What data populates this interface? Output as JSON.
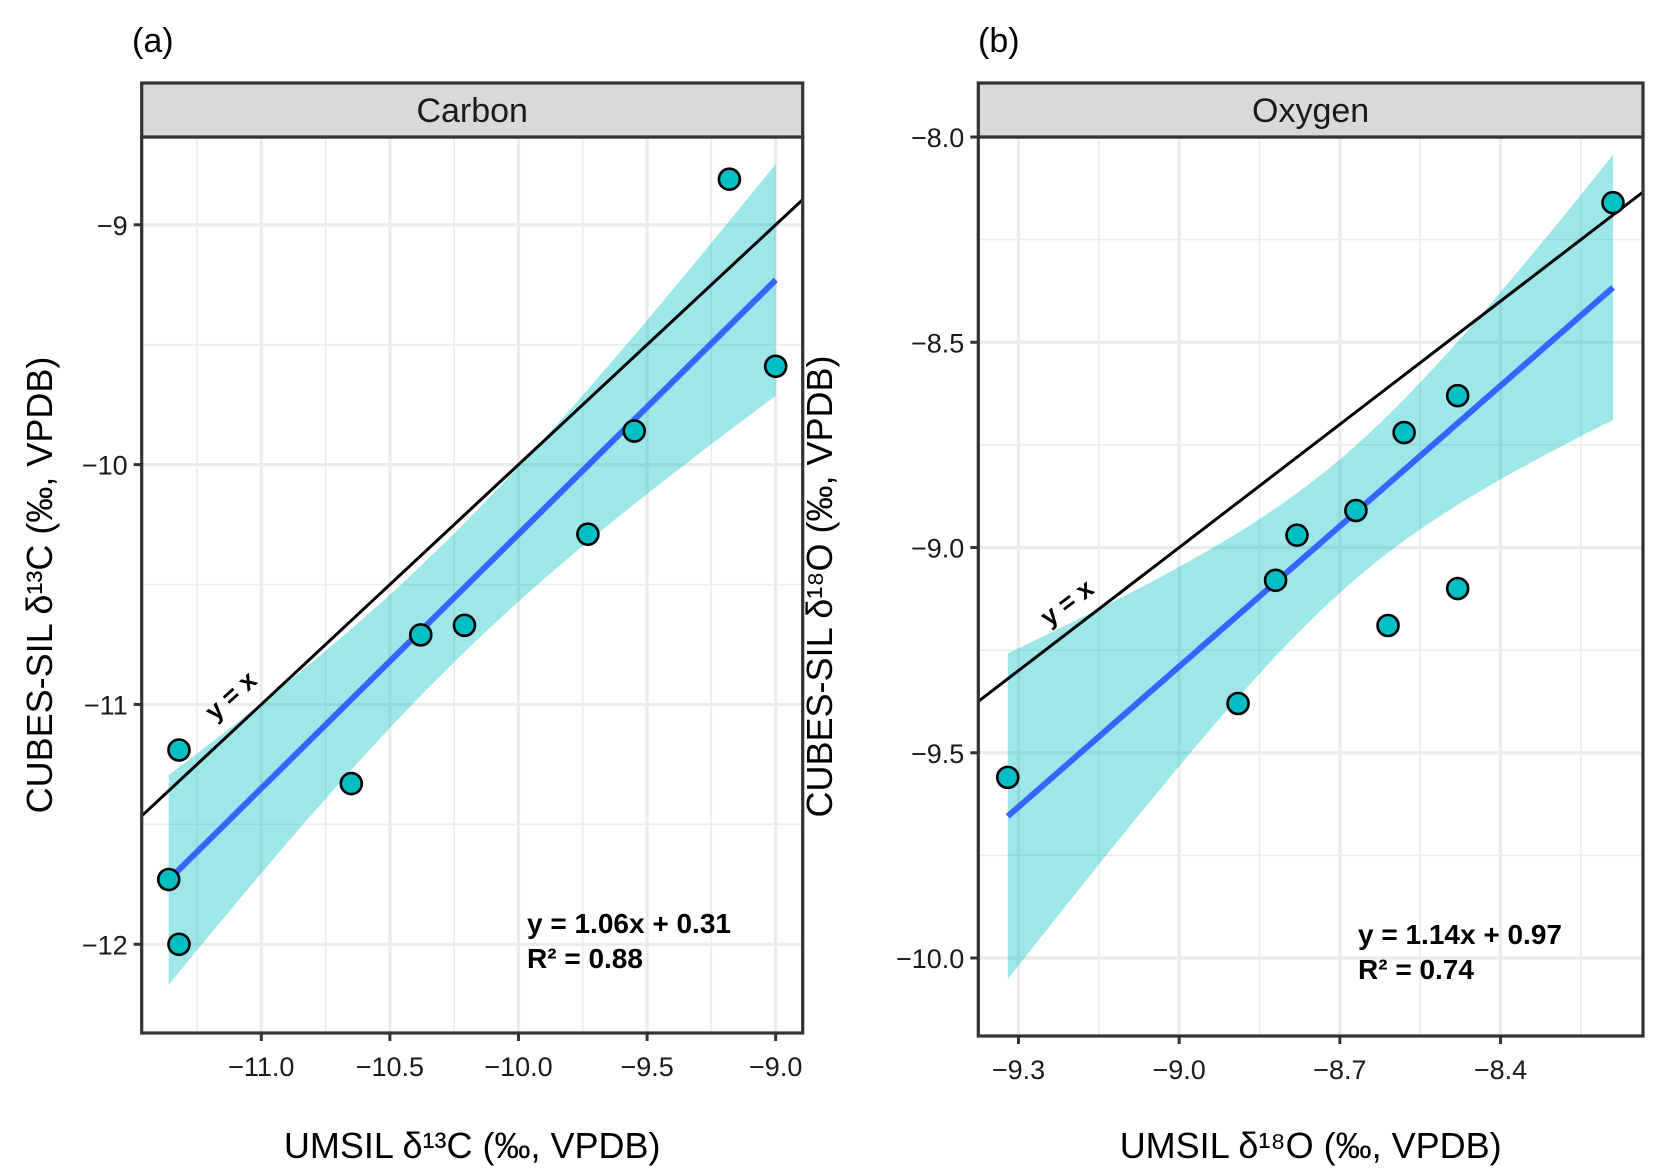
{
  "chart_data": [
    {
      "type": "scatter",
      "panel_tag": "(a)",
      "title": "Carbon",
      "xlabel": "UMSIL δ¹³C (‰, VPDB)",
      "ylabel": "CUBES-SIL δ¹³C (‰, VPDB)",
      "xlim": [
        -11.465,
        -8.895
      ],
      "ylim": [
        -12.37,
        -8.634
      ],
      "xticks": [
        -11.0,
        -10.5,
        -10.0,
        -9.5,
        -9.0
      ],
      "xtick_labels": [
        "−11.0",
        "−10.5",
        "−10.0",
        "−9.5",
        "−9.0"
      ],
      "yticks": [
        -12,
        -11,
        -10,
        -9
      ],
      "ytick_labels": [
        "−12",
        "−11",
        "−10",
        "−9"
      ],
      "grid": true,
      "points": [
        {
          "x": -11.36,
          "y": -11.73
        },
        {
          "x": -11.32,
          "y": -12.0
        },
        {
          "x": -11.32,
          "y": -11.19
        },
        {
          "x": -10.65,
          "y": -11.33
        },
        {
          "x": -10.38,
          "y": -10.71
        },
        {
          "x": -10.21,
          "y": -10.67
        },
        {
          "x": -9.73,
          "y": -10.29
        },
        {
          "x": -9.55,
          "y": -9.86
        },
        {
          "x": -9.18,
          "y": -8.81
        },
        {
          "x": -9.0,
          "y": -9.59
        }
      ],
      "fit": {
        "slope": 1.06,
        "intercept": 0.31,
        "r2": 0.88,
        "confidence_band": true
      },
      "reference_line": {
        "label": "y = x",
        "slope": 1,
        "intercept": 0
      },
      "annotation": {
        "line1": "y = 1.06x + 0.31",
        "line2": "R² = 0.88"
      }
    },
    {
      "type": "scatter",
      "panel_tag": "(b)",
      "title": "Oxygen",
      "xlabel": "UMSIL δ¹⁸O (‰, VPDB)",
      "ylabel": "CUBES-SIL δ¹⁸O (‰, VPDB)",
      "xlim": [
        -9.375,
        -8.134
      ],
      "ylim": [
        -10.19,
        -8.0
      ],
      "xticks": [
        -9.3,
        -9.0,
        -8.7,
        -8.4
      ],
      "xtick_labels": [
        "−9.3",
        "−9.0",
        "−8.7",
        "−8.4"
      ],
      "yticks": [
        -10.0,
        -9.5,
        -9.0,
        -8.5,
        -8.0
      ],
      "ytick_labels": [
        "−10.0",
        "−9.5",
        "−9.0",
        "−8.5",
        "−8.0"
      ],
      "grid": true,
      "points": [
        {
          "x": -9.32,
          "y": -9.56
        },
        {
          "x": -8.89,
          "y": -9.38
        },
        {
          "x": -8.82,
          "y": -9.08
        },
        {
          "x": -8.78,
          "y": -8.97
        },
        {
          "x": -8.67,
          "y": -8.91
        },
        {
          "x": -8.61,
          "y": -9.19
        },
        {
          "x": -8.58,
          "y": -8.72
        },
        {
          "x": -8.48,
          "y": -8.63
        },
        {
          "x": -8.48,
          "y": -9.1
        },
        {
          "x": -8.19,
          "y": -8.16
        }
      ],
      "fit": {
        "slope": 1.14,
        "intercept": 0.97,
        "r2": 0.74,
        "confidence_band": true
      },
      "reference_line": {
        "label": "y = x",
        "slope": 1,
        "intercept": 0
      },
      "annotation": {
        "line1": "y = 1.14x + 0.97",
        "line2": "R² = 0.74"
      }
    }
  ],
  "colors": {
    "point_fill": "#00BFC4",
    "point_stroke": "#000000",
    "fit_line": "#3366FF",
    "band": "#00BFC4",
    "reference_line": "#000000",
    "strip_fill": "#D9D9D9",
    "grid": "#EBEBEB",
    "border": "#333333"
  }
}
